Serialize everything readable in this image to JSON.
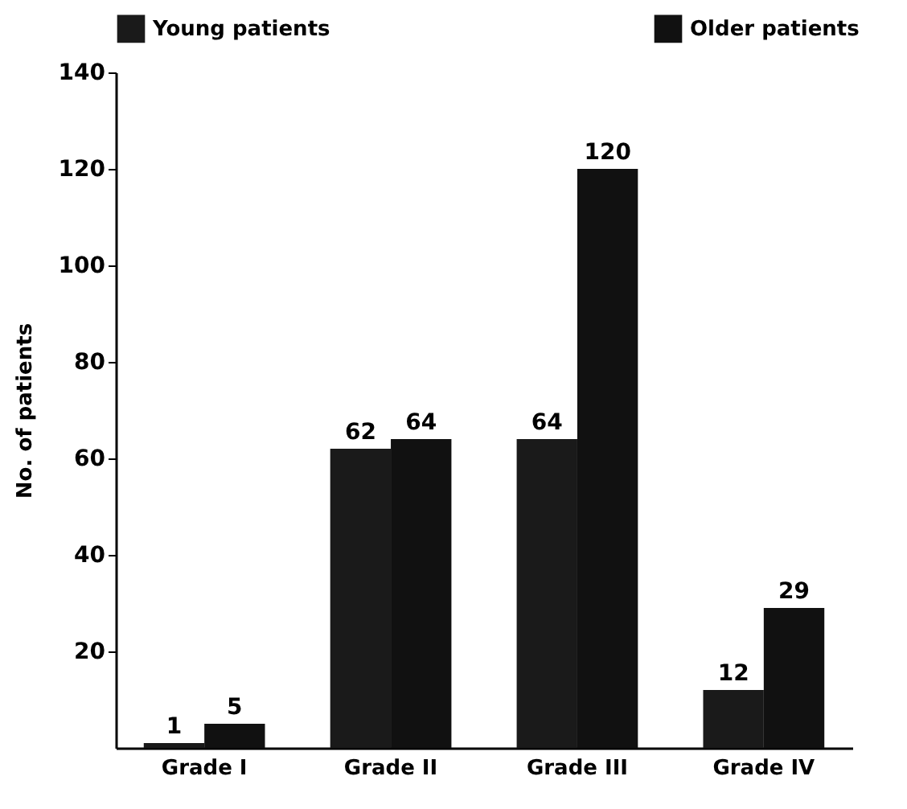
{
  "chart_data": {
    "type": "bar",
    "ylabel": "No. of patients",
    "categories": [
      "Grade I",
      "Grade II",
      "Grade III",
      "Grade IV"
    ],
    "series": [
      {
        "name": "Young patients",
        "color": "#1a1a1a",
        "values": [
          1,
          62,
          64,
          12
        ]
      },
      {
        "name": "Older patients",
        "color": "#111111",
        "values": [
          5,
          64,
          120,
          29
        ]
      }
    ],
    "ylim": [
      0,
      140
    ],
    "yticks": [
      20,
      40,
      60,
      80,
      100,
      120,
      140
    ],
    "data_labels": true,
    "legend": "top",
    "grid": false
  }
}
